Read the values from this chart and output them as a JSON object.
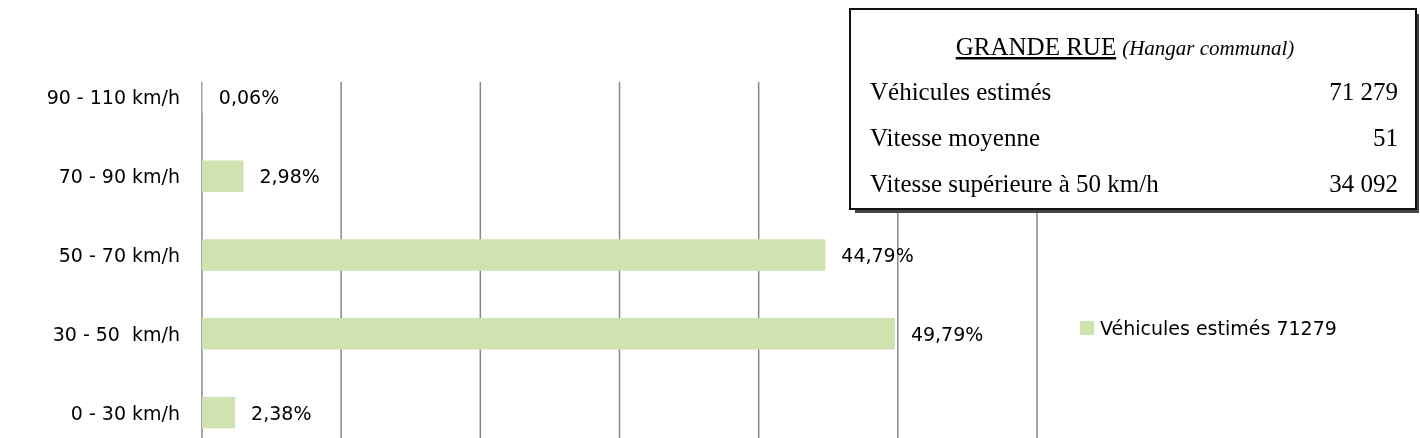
{
  "chart_data": {
    "type": "bar",
    "orientation": "horizontal",
    "title": "GRANDE RUE",
    "subtitle": "(Hangar communal)",
    "categories": [
      "90 - 110 km/h",
      "70 - 90 km/h",
      "50 - 70 km/h",
      "30 - 50  km/h",
      "0 - 30 km/h"
    ],
    "series": [
      {
        "name": "Véhicules estimés 71279",
        "color": "#cfe2b0",
        "values": [
          0.06,
          2.98,
          44.79,
          49.79,
          2.38
        ],
        "value_labels": [
          "0,06%",
          "2,98%",
          "44,79%",
          "49,79%",
          "2,38%"
        ]
      }
    ],
    "xlim": [
      0,
      60
    ],
    "xticks": [
      {
        "value": 0,
        "label": null
      },
      {
        "value": 10,
        "label": null
      },
      {
        "value": 20,
        "label": null
      },
      {
        "value": 30,
        "label": null
      },
      {
        "value": 40,
        "label": null
      },
      {
        "value": 50,
        "label": null
      },
      {
        "value": 60,
        "label": null
      }
    ],
    "tick_labels": "y",
    "grid": "x",
    "legend": "right",
    "annotations": [
      "Véhicules estimés",
      "71 279",
      "Vitesse moyenne",
      "51",
      "Vitesse supérieure à 50 km/h",
      "34 092"
    ]
  }
}
